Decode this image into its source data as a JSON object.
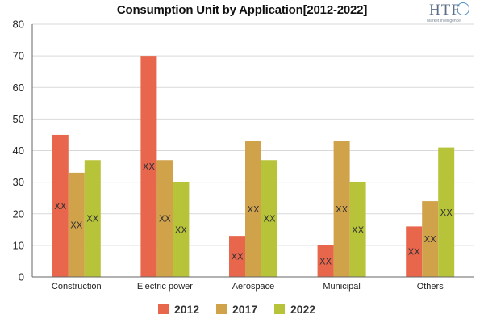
{
  "title": "Consumption Unit by  Application[2012-2022]",
  "logo": {
    "brand": "HTF",
    "tagline": "Market Intelligence"
  },
  "chart_data": {
    "type": "bar",
    "title": "Consumption Unit by  Application[2012-2022]",
    "xlabel": "",
    "ylabel": "",
    "categories": [
      "Construction",
      "Electric power",
      "Aerospace",
      "Municipal",
      "Others"
    ],
    "series": [
      {
        "name": "2012",
        "color": "#e8664c",
        "values": [
          45,
          70,
          13,
          10,
          16
        ],
        "labels": [
          "XX",
          "XX",
          "XX",
          "XX",
          "XX"
        ]
      },
      {
        "name": "2017",
        "color": "#d0a24a",
        "values": [
          33,
          37,
          43,
          43,
          24
        ],
        "labels": [
          "XX",
          "XX",
          "XX",
          "XX",
          "XX"
        ]
      },
      {
        "name": "2022",
        "color": "#b7c43a",
        "values": [
          37,
          30,
          37,
          30,
          41
        ],
        "labels": [
          "XX",
          "XX",
          "XX",
          "XX",
          "XX"
        ]
      }
    ],
    "ylim": [
      0,
      80
    ],
    "yticks": [
      0,
      10,
      20,
      30,
      40,
      50,
      60,
      70,
      80
    ],
    "grid": true,
    "legend_position": "bottom"
  }
}
